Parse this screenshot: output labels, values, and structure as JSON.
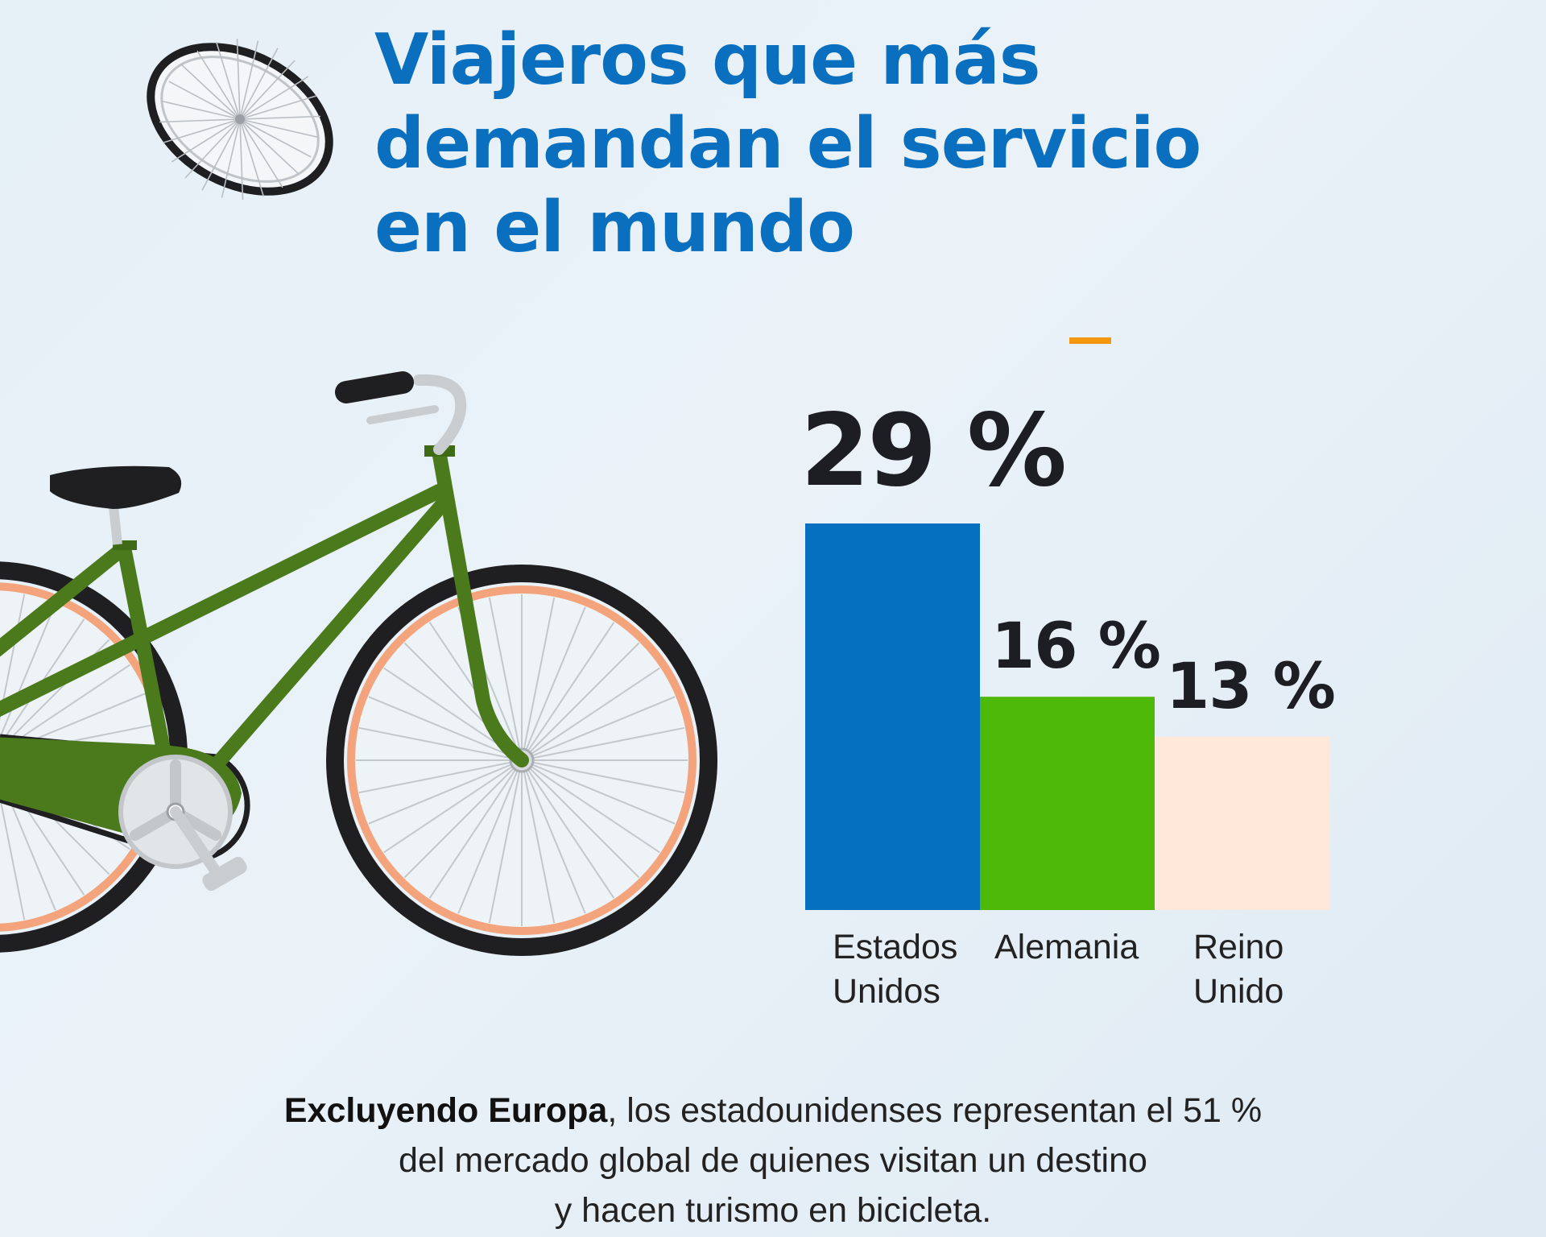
{
  "title": {
    "line1": "Viajeros que más",
    "line2": "demandan el servicio",
    "line3": "en el mundo"
  },
  "caption": {
    "bold": "Excluyendo Europa",
    "rest1": ", los estadounidenses representan el 51 %",
    "line2": "del mercado global de quienes visitan un destino",
    "line3": "y hacen turismo en bicicleta."
  },
  "icons": [
    "bicycle-wheel-icon",
    "bicycle-illustration",
    "orange-dash-accent"
  ],
  "colors": {
    "title": "#0a6fbf",
    "bar_us": "#0570bf",
    "bar_de": "#4fb90a",
    "bar_uk": "#fde8da",
    "accent": "#f5960f",
    "frame": "#4b7a1d",
    "rim": "#f3a47c"
  },
  "chart_data": {
    "type": "bar",
    "title": "Viajeros que más demandan el servicio en el mundo",
    "xlabel": "",
    "ylabel": "",
    "ylim": [
      0,
      29
    ],
    "unit": "%",
    "categories": [
      [
        "Estados",
        "Unidos"
      ],
      [
        "Alemania"
      ],
      [
        "Reino",
        "Unido"
      ]
    ],
    "values": [
      29,
      16,
      13
    ],
    "value_labels": [
      "29 %",
      "16 %",
      "13 %"
    ],
    "colors": [
      "#0570bf",
      "#4fb90a",
      "#fde8da"
    ],
    "grid": false,
    "legend": "none"
  }
}
